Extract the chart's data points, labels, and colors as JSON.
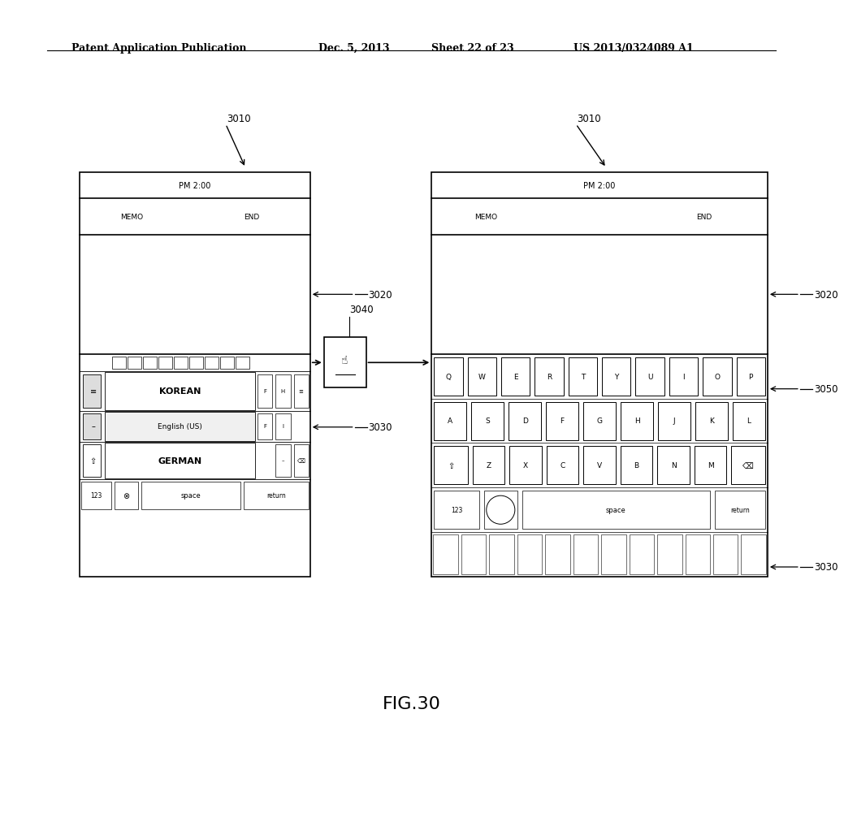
{
  "bg_color": "#ffffff",
  "header_text": "Patent Application Publication",
  "header_date": "Dec. 5, 2013",
  "header_sheet": "Sheet 22 of 23",
  "header_patent": "US 2013/0324089 A1",
  "fig_label": "FIG.30",
  "label_3010": "3010",
  "label_3020": "3020",
  "label_3030": "3030",
  "label_3040": "3040",
  "label_3050": "3050"
}
